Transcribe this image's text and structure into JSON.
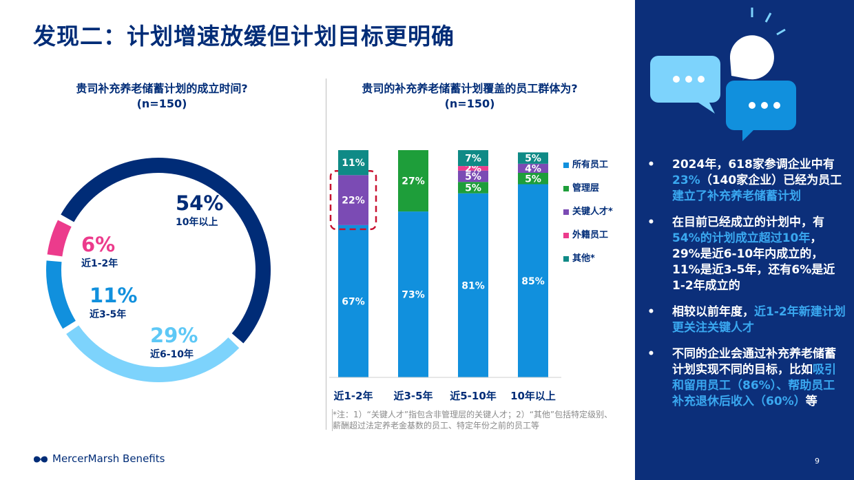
{
  "title": "发现二：计划增速放缓但计划目标更明确",
  "question1": {
    "line1": "贵司补充养老储蓄计划的成立时间?",
    "line2": "(n=150)"
  },
  "question2": {
    "line1": "贵司的补充养老储蓄计划覆盖的员工群体为?",
    "line2": "(n=150)"
  },
  "chart_data": [
    {
      "type": "pie",
      "title": "贵司补充养老储蓄计划的成立时间?",
      "subtitle": "(n=150)",
      "slices": [
        {
          "label": "10年以上",
          "value": 54,
          "display": "54%",
          "color": "#002c77"
        },
        {
          "label": "近6-10年",
          "value": 29,
          "display": "29%",
          "color": "#7dd3fc"
        },
        {
          "label": "近3-5年",
          "value": 11,
          "display": "11%",
          "color": "#1190dd"
        },
        {
          "label": "近1-2年",
          "value": 6,
          "display": "6%",
          "color": "#ec3b8c"
        }
      ]
    },
    {
      "type": "bar",
      "title": "贵司的补充养老储蓄计划覆盖的员工群体为?",
      "subtitle": "(n=150)",
      "stacked": true,
      "categories": [
        "近1-2年",
        "近3-5年",
        "近5-10年",
        "10年以上"
      ],
      "series": [
        {
          "name": "所有员工",
          "color": "#1190dd",
          "values": [
            67,
            73,
            81,
            85
          ],
          "labels": [
            "67%",
            "73%",
            "81%",
            "85%"
          ]
        },
        {
          "name": "管理层",
          "color": "#1e9e3a",
          "values": [
            0,
            27,
            5,
            5
          ],
          "labels": [
            "",
            "27%",
            "5%",
            "5%"
          ]
        },
        {
          "name": "关键人才*",
          "color": "#7b4bb4",
          "values": [
            22,
            0,
            5,
            4
          ],
          "labels": [
            "22%",
            "",
            "5%",
            "4%"
          ]
        },
        {
          "name": "外籍员工",
          "color": "#ec3b8c",
          "values": [
            0,
            0,
            2,
            0
          ],
          "labels": [
            "",
            "",
            "2%",
            ""
          ]
        },
        {
          "name": "其他*",
          "color": "#0f8a86",
          "values": [
            11,
            0,
            7,
            5
          ],
          "labels": [
            "11%",
            "",
            "7%",
            "5%"
          ]
        }
      ],
      "ylim": [
        0,
        100
      ],
      "highlight_category": "近1-2年",
      "highlight_series": "关键人才*"
    }
  ],
  "note": "*注：1）“关键人才”指包含非管理层的关键人才；2）“其他”包括特定级别、薪酬超过法定养老金基数的员工、特定年份之前的员工等",
  "logo": "MercerMarsh Benefits",
  "page_number": "9",
  "bullets": [
    [
      {
        "t": "2024年，618家参调企业中有"
      },
      {
        "t": "23%",
        "hl": true
      },
      {
        "t": "（140家企业）已经为员工"
      },
      {
        "t": "建立了补充养老储蓄计划",
        "hl": true
      }
    ],
    [
      {
        "t": "在目前已经成立的计划中，有"
      },
      {
        "t": "54%的计划成立超过10年",
        "hl": true
      },
      {
        "t": "，29%是近6-10年内成立的，11%是近3-5年，还有6%是近1-2年成立的"
      }
    ],
    [
      {
        "t": "相较以前年度，"
      },
      {
        "t": "近1-2年新建计划更关注关键人才",
        "hl": true
      }
    ],
    [
      {
        "t": "不同的企业会通过补充养老储蓄计划实现不同的目标，比如"
      },
      {
        "t": "吸引和留用员工（86%）、帮助员工补充退休后收入（60%）",
        "hl": true
      },
      {
        "t": "等"
      }
    ]
  ],
  "colors": {
    "navy": "#002c77",
    "panel": "#0c2f7a",
    "accent": "#3aa8f0",
    "highlight_border": "#c8102e"
  }
}
